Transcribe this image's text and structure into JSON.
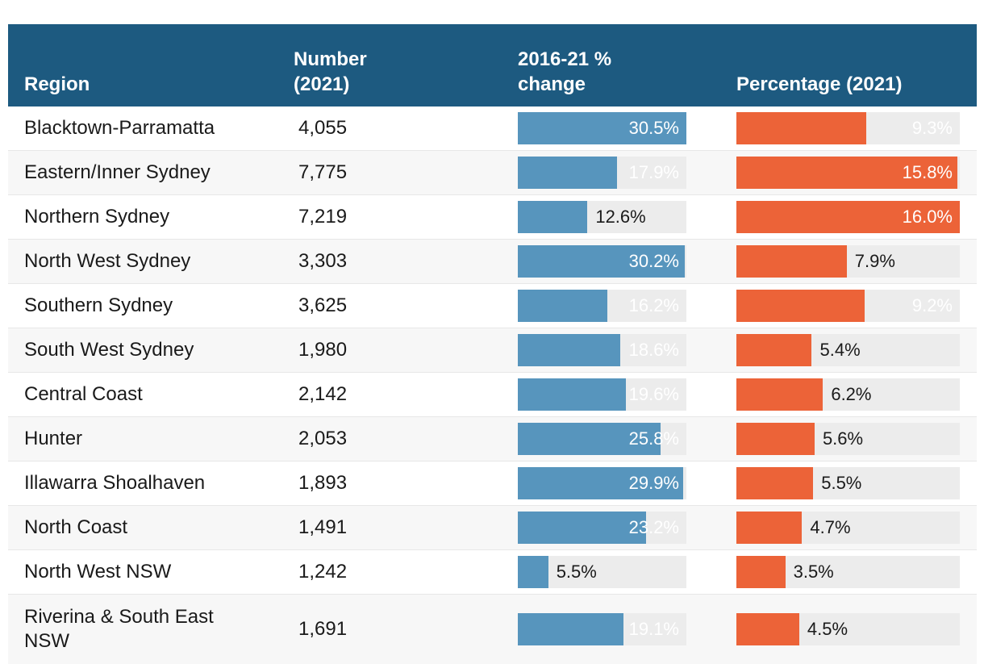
{
  "colors": {
    "header_bg": "#1d5a80",
    "change_bar": "#5795bd",
    "percentage_bar": "#ec6338",
    "bar_track": "#ececec",
    "row_stripe": "#f7f7f7",
    "text": "#1a1a1a"
  },
  "table": {
    "headers": {
      "region": "Region",
      "number": "Number (2021)",
      "change": "2016-21 % change",
      "percentage": "Percentage (2021)"
    },
    "change_max": 30.5,
    "percentage_max": 16.0,
    "rows": [
      {
        "region": "Blacktown-Parramatta",
        "number": "4,055",
        "change": 30.5,
        "change_label": "30.5%",
        "percentage": 9.3,
        "percentage_label": "9.3%"
      },
      {
        "region": "Eastern/Inner Sydney",
        "number": "7,775",
        "change": 17.9,
        "change_label": "17.9%",
        "percentage": 15.8,
        "percentage_label": "15.8%"
      },
      {
        "region": "Northern Sydney",
        "number": "7,219",
        "change": 12.6,
        "change_label": "12.6%",
        "percentage": 16.0,
        "percentage_label": "16.0%"
      },
      {
        "region": "North West Sydney",
        "number": "3,303",
        "change": 30.2,
        "change_label": "30.2%",
        "percentage": 7.9,
        "percentage_label": "7.9%"
      },
      {
        "region": "Southern Sydney",
        "number": "3,625",
        "change": 16.2,
        "change_label": "16.2%",
        "percentage": 9.2,
        "percentage_label": "9.2%"
      },
      {
        "region": "South West Sydney",
        "number": "1,980",
        "change": 18.6,
        "change_label": "18.6%",
        "percentage": 5.4,
        "percentage_label": "5.4%"
      },
      {
        "region": "Central Coast",
        "number": "2,142",
        "change": 19.6,
        "change_label": "19.6%",
        "percentage": 6.2,
        "percentage_label": "6.2%"
      },
      {
        "region": "Hunter",
        "number": "2,053",
        "change": 25.8,
        "change_label": "25.8%",
        "percentage": 5.6,
        "percentage_label": "5.6%"
      },
      {
        "region": "Illawarra Shoalhaven",
        "number": "1,893",
        "change": 29.9,
        "change_label": "29.9%",
        "percentage": 5.5,
        "percentage_label": "5.5%"
      },
      {
        "region": "North Coast",
        "number": "1,491",
        "change": 23.2,
        "change_label": "23.2%",
        "percentage": 4.7,
        "percentage_label": "4.7%"
      },
      {
        "region": "North West NSW",
        "number": "1,242",
        "change": 5.5,
        "change_label": "5.5%",
        "percentage": 3.5,
        "percentage_label": "3.5%"
      },
      {
        "region": "Riverina & South East NSW",
        "number": "1,691",
        "change": 19.1,
        "change_label": "19.1%",
        "percentage": 4.5,
        "percentage_label": "4.5%"
      }
    ]
  },
  "chart_data": {
    "type": "table",
    "title": "",
    "categories": [
      "Blacktown-Parramatta",
      "Eastern/Inner Sydney",
      "Northern Sydney",
      "North West Sydney",
      "Southern Sydney",
      "South West Sydney",
      "Central Coast",
      "Hunter",
      "Illawarra Shoalhaven",
      "North Coast",
      "North West NSW",
      "Riverina & South East NSW"
    ],
    "series": [
      {
        "name": "Number (2021)",
        "type": "value",
        "values": [
          4055,
          7775,
          7219,
          3303,
          3625,
          1980,
          2142,
          2053,
          1893,
          1491,
          1242,
          1691
        ]
      },
      {
        "name": "2016-21 % change",
        "type": "bar",
        "color": "#5795bd",
        "axis_max": 30.5,
        "values": [
          30.5,
          17.9,
          12.6,
          30.2,
          16.2,
          18.6,
          19.6,
          25.8,
          29.9,
          23.2,
          5.5,
          19.1
        ]
      },
      {
        "name": "Percentage (2021)",
        "type": "bar",
        "color": "#ec6338",
        "axis_max": 16.0,
        "values": [
          9.3,
          15.8,
          16.0,
          7.9,
          9.2,
          5.4,
          6.2,
          5.6,
          5.5,
          4.7,
          3.5,
          4.5
        ]
      }
    ],
    "layout": {
      "legend": "none",
      "grid": false,
      "bar_labels": "shown at end of bar, white when inside, dark when outside"
    }
  }
}
